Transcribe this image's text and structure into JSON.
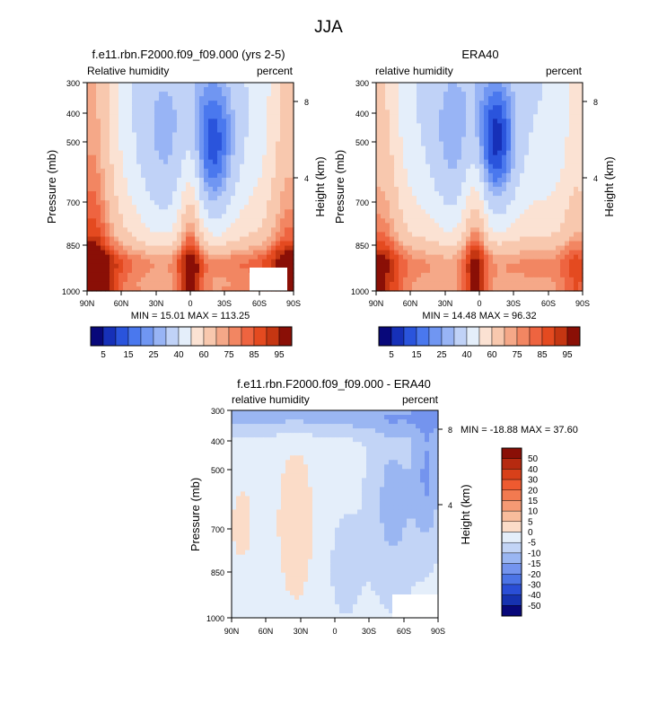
{
  "figure": {
    "title": "JJA"
  },
  "chart_data": [
    {
      "type": "heatmap",
      "title": "f.e11.rbn.F2000.f09_f09.000 (yrs 2-5)",
      "left_label": "Relative humidity",
      "right_label": "percent",
      "ylabel": "Pressure (mb)",
      "ylabel_right": "Height (km)",
      "y_ticks": [
        "300",
        "400",
        "500",
        "700",
        "850",
        "1000"
      ],
      "y_right_ticks": [
        "8",
        "4"
      ],
      "x_ticks": [
        "90N",
        "60N",
        "30N",
        "0",
        "30S",
        "60S",
        "90S"
      ],
      "stats": "MIN = 15.01 MAX = 113.25",
      "colorbar_labels": [
        "5",
        "15",
        "25",
        "40",
        "60",
        "75",
        "85",
        "95"
      ]
    },
    {
      "type": "heatmap",
      "title": "ERA40",
      "left_label": "relative humidity",
      "right_label": "percent",
      "ylabel": "Pressure (mb)",
      "ylabel_right": "Height (km)",
      "y_ticks": [
        "300",
        "400",
        "500",
        "700",
        "850",
        "1000"
      ],
      "y_right_ticks": [
        "8",
        "4"
      ],
      "x_ticks": [
        "90N",
        "60N",
        "30N",
        "0",
        "30S",
        "60S",
        "90S"
      ],
      "stats": "MIN = 14.48 MAX = 96.32",
      "colorbar_labels": [
        "5",
        "15",
        "25",
        "40",
        "60",
        "75",
        "85",
        "95"
      ]
    },
    {
      "type": "heatmap",
      "title": "f.e11.rbn.F2000.f09_f09.000 - ERA40",
      "left_label": "relative humidity",
      "right_label": "percent",
      "ylabel": "Pressure (mb)",
      "ylabel_right": "Height (km)",
      "y_ticks": [
        "300",
        "400",
        "500",
        "700",
        "850",
        "1000"
      ],
      "y_right_ticks": [
        "8",
        "4"
      ],
      "x_ticks": [
        "90N",
        "60N",
        "30N",
        "0",
        "30S",
        "60S",
        "90S"
      ],
      "stats": "MIN = -18.88 MAX = 37.60",
      "colorbar_labels": [
        "50",
        "40",
        "30",
        "20",
        "15",
        "10",
        "5",
        "0",
        "-5",
        "-10",
        "-15",
        "-20",
        "-30",
        "-40",
        "-50"
      ]
    }
  ],
  "colors": {
    "abs_scale": [
      "#08087a",
      "#1630b8",
      "#2a54dc",
      "#4a78ee",
      "#7096f2",
      "#98b4f5",
      "#c0d2f7",
      "#e4eefa",
      "#fbe2d3",
      "#f8c8ae",
      "#f5a888",
      "#f28662",
      "#ee6440",
      "#e44a20",
      "#c53612",
      "#8a0f06"
    ],
    "diff_scale": [
      "#8a0f06",
      "#b62a10",
      "#d8401a",
      "#ee5a30",
      "#f27a50",
      "#f59a74",
      "#f8bc9c",
      "#fbdcc8",
      "#e4eefa",
      "#c2d4f6",
      "#9ab6f2",
      "#7494ee",
      "#4c74e6",
      "#2a4ed6",
      "#1632b0",
      "#08087a"
    ],
    "missing": "#ffffff"
  }
}
